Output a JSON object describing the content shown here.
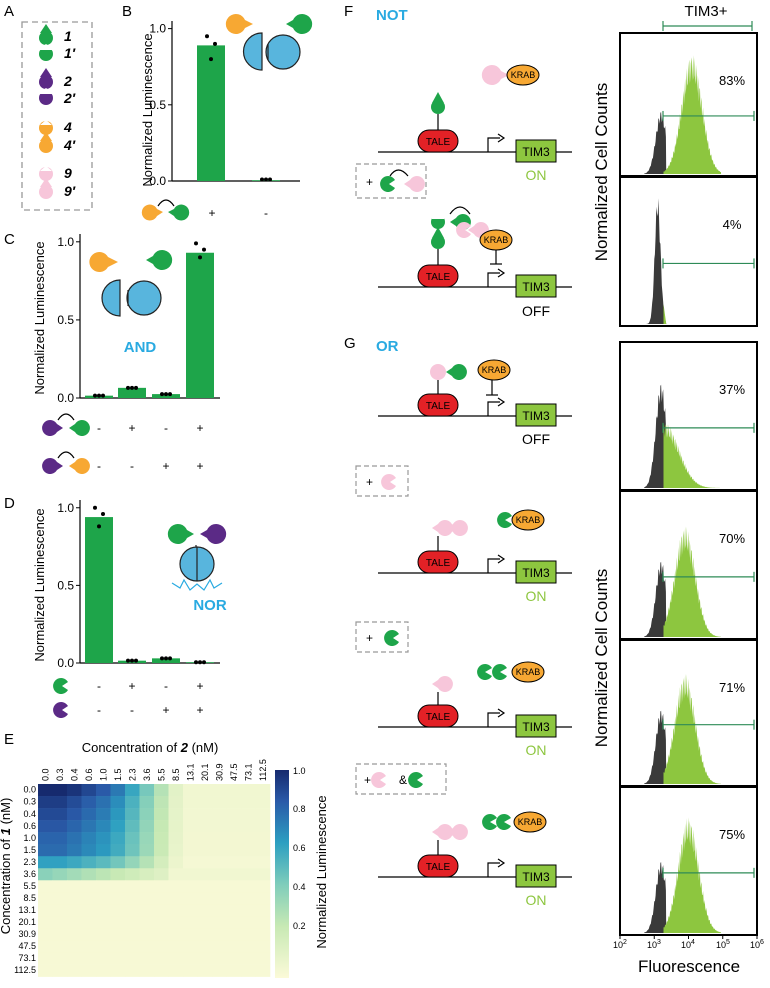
{
  "colors": {
    "green": "#1ea54a",
    "purple": "#5b2a86",
    "orange": "#f7a833",
    "pink": "#f7c6da",
    "blue": "#29aae1",
    "cyan": "#58b5dd",
    "lime": "#8dc63f",
    "red": "#e32126",
    "dark": "#3a3a3a"
  },
  "panel_A": {
    "label": "A",
    "items": [
      "1",
      "1′",
      "2",
      "2′",
      "4",
      "4′",
      "9",
      "9′"
    ]
  },
  "panel_B": {
    "label": "B",
    "ylabel": "Normalized Luminescence",
    "ticks": [
      "0.0",
      "0.5",
      "1.0"
    ],
    "conditions": [
      "+",
      "-"
    ],
    "chart_data": {
      "type": "bar",
      "categories": [
        "+",
        "-"
      ],
      "values": [
        0.89,
        0.005
      ],
      "ylim": [
        0,
        1.05
      ],
      "ylabel": "Normalized Luminescence",
      "points": [
        [
          0.95,
          0.8,
          0.9
        ],
        [
          0.01,
          0.01,
          0.01
        ]
      ]
    }
  },
  "panel_C": {
    "label": "C",
    "ylabel": "Normalized Luminescence",
    "ticks": [
      "0.0",
      "0.5",
      "1.0"
    ],
    "gate": "AND",
    "row1": [
      "-",
      "+",
      "-",
      "+"
    ],
    "row2": [
      "-",
      "-",
      "+",
      "+"
    ],
    "chart_data": {
      "type": "bar",
      "categories": [
        "--",
        "+-",
        "-+",
        "++"
      ],
      "values": [
        0.015,
        0.065,
        0.025,
        0.93
      ],
      "ylim": [
        0,
        1.05
      ],
      "ylabel": "Normalized Luminescence",
      "points": [
        [
          0.015,
          0.015,
          0.015
        ],
        [
          0.065,
          0.065,
          0.065
        ],
        [
          0.025,
          0.025,
          0.025
        ],
        [
          0.99,
          0.9,
          0.95
        ]
      ]
    }
  },
  "panel_D": {
    "label": "D",
    "ylabel": "Normalized Luminescence",
    "ticks": [
      "0.0",
      "0.5",
      "1.0"
    ],
    "gate": "NOR",
    "row1": [
      "-",
      "+",
      "-",
      "+"
    ],
    "row2": [
      "-",
      "-",
      "+",
      "+"
    ],
    "chart_data": {
      "type": "bar",
      "categories": [
        "--",
        "+-",
        "-+",
        "++"
      ],
      "values": [
        0.94,
        0.015,
        0.03,
        0.005
      ],
      "ylim": [
        0,
        1.05
      ],
      "ylabel": "Normalized Luminescence",
      "points": [
        [
          1.0,
          0.88,
          0.96
        ],
        [
          0.015,
          0.015,
          0.015
        ],
        [
          0.03,
          0.03,
          0.03
        ],
        [
          0.005,
          0.005,
          0.005
        ]
      ]
    }
  },
  "panel_E": {
    "label": "E",
    "xlabel_pre": "Concentration of ",
    "xlabel_it": "2",
    "xlabel_post": " (nM)",
    "ylabel_pre": "Concentration of ",
    "ylabel_it": "1",
    "ylabel_post": " (nM)",
    "cbar_label": "Normalized Luminescence",
    "cbar_ticks": [
      "1.0",
      "0.8",
      "0.6",
      "0.4",
      "0.2"
    ],
    "chart_data": {
      "type": "heatmap",
      "x": [
        "0.0",
        "0.3",
        "0.4",
        "0.6",
        "1.0",
        "1.5",
        "2.3",
        "3.6",
        "5.5",
        "8.5",
        "13.1",
        "20.1",
        "30.9",
        "47.5",
        "73.1",
        "112.5"
      ],
      "y": [
        "0.0",
        "0.3",
        "0.4",
        "0.6",
        "1.0",
        "1.5",
        "2.3",
        "3.6",
        "5.5",
        "8.5",
        "13.1",
        "20.1",
        "30.9",
        "47.5",
        "73.1",
        "112.5"
      ],
      "zrange": [
        0,
        1
      ],
      "note": "high signal when concentration of 1 is at most 2.3 nM and concentration of 2 is at most about 8.5 nM"
    }
  },
  "panel_F": {
    "label": "F",
    "gate": "NOT",
    "gene": "TIM3",
    "tale": "TALE",
    "krab": "KRAB",
    "state1": "ON",
    "state2": "OFF",
    "plus": "+"
  },
  "panel_G": {
    "label": "G",
    "gate": "OR",
    "gene": "TIM3",
    "tale": "TALE",
    "krab": "KRAB",
    "states": [
      "OFF",
      "ON",
      "ON",
      "ON"
    ],
    "plus": "+",
    "amp": "&"
  },
  "flow": {
    "title": "TIM3+",
    "ylabel": "Normalized Cell Counts",
    "xlabel": "Fluorescence",
    "xticks": [
      "10",
      "10",
      "10",
      "10",
      "10"
    ],
    "xexp": [
      "2",
      "3",
      "4",
      "5",
      "6"
    ],
    "chart_data": {
      "type": "area",
      "gate_label": "TIM3+",
      "percents_F": [
        "83%",
        "4%"
      ],
      "percents_G": [
        "37%",
        "70%",
        "71%",
        "75%"
      ],
      "x_scale": "log10",
      "xlim": [
        100,
        1000000
      ]
    }
  }
}
